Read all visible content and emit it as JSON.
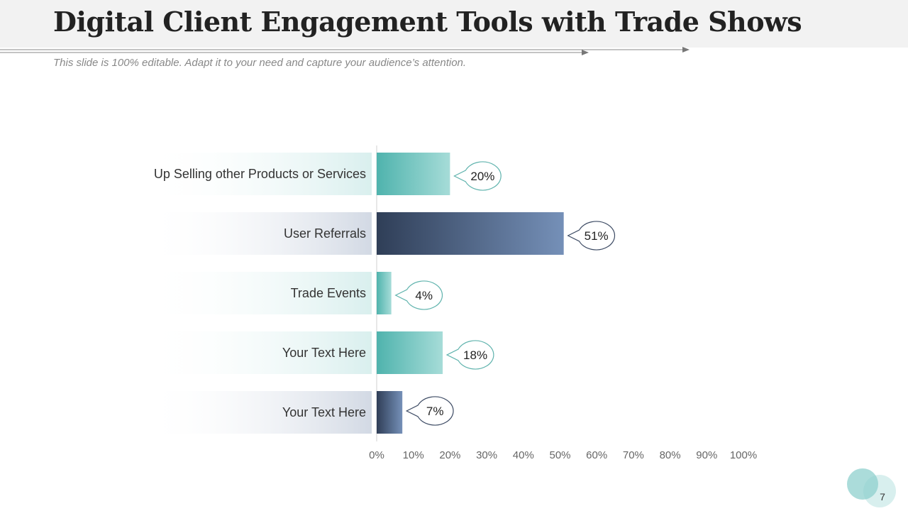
{
  "slide": {
    "title": "Digital Client Engagement Tools with Trade Shows",
    "subtitle": "This slide is 100% editable. Adapt it to your need and capture your audience’s attention.",
    "page_number": "7"
  },
  "colors": {
    "teal_dark": "#4fb3ad",
    "teal_light": "#a6dcd8",
    "navy_dark": "#2f3e57",
    "navy_light": "#7590b8",
    "label_teal": "#d9efee",
    "label_navy": "#d2d9e4",
    "circle": "#8fd0cd"
  },
  "chart_data": {
    "type": "bar",
    "orientation": "horizontal",
    "categories": [
      "Up Selling other Products or Services",
      "User Referrals",
      "Trade Events",
      "Your Text Here",
      "Your Text Here"
    ],
    "values": [
      20,
      51,
      4,
      18,
      7
    ],
    "data_labels": [
      "20%",
      "51%",
      "4%",
      "18%",
      "7%"
    ],
    "bar_colors": [
      "teal",
      "navy",
      "teal",
      "teal",
      "navy"
    ],
    "xlim": [
      0,
      100
    ],
    "x_ticks": [
      0,
      10,
      20,
      30,
      40,
      50,
      60,
      70,
      80,
      90,
      100
    ],
    "x_tick_labels": [
      "0%",
      "10%",
      "20%",
      "30%",
      "40%",
      "50%",
      "60%",
      "70%",
      "80%",
      "90%",
      "100%"
    ],
    "title": "",
    "xlabel": "",
    "ylabel": "",
    "grid": false,
    "legend": "none"
  }
}
